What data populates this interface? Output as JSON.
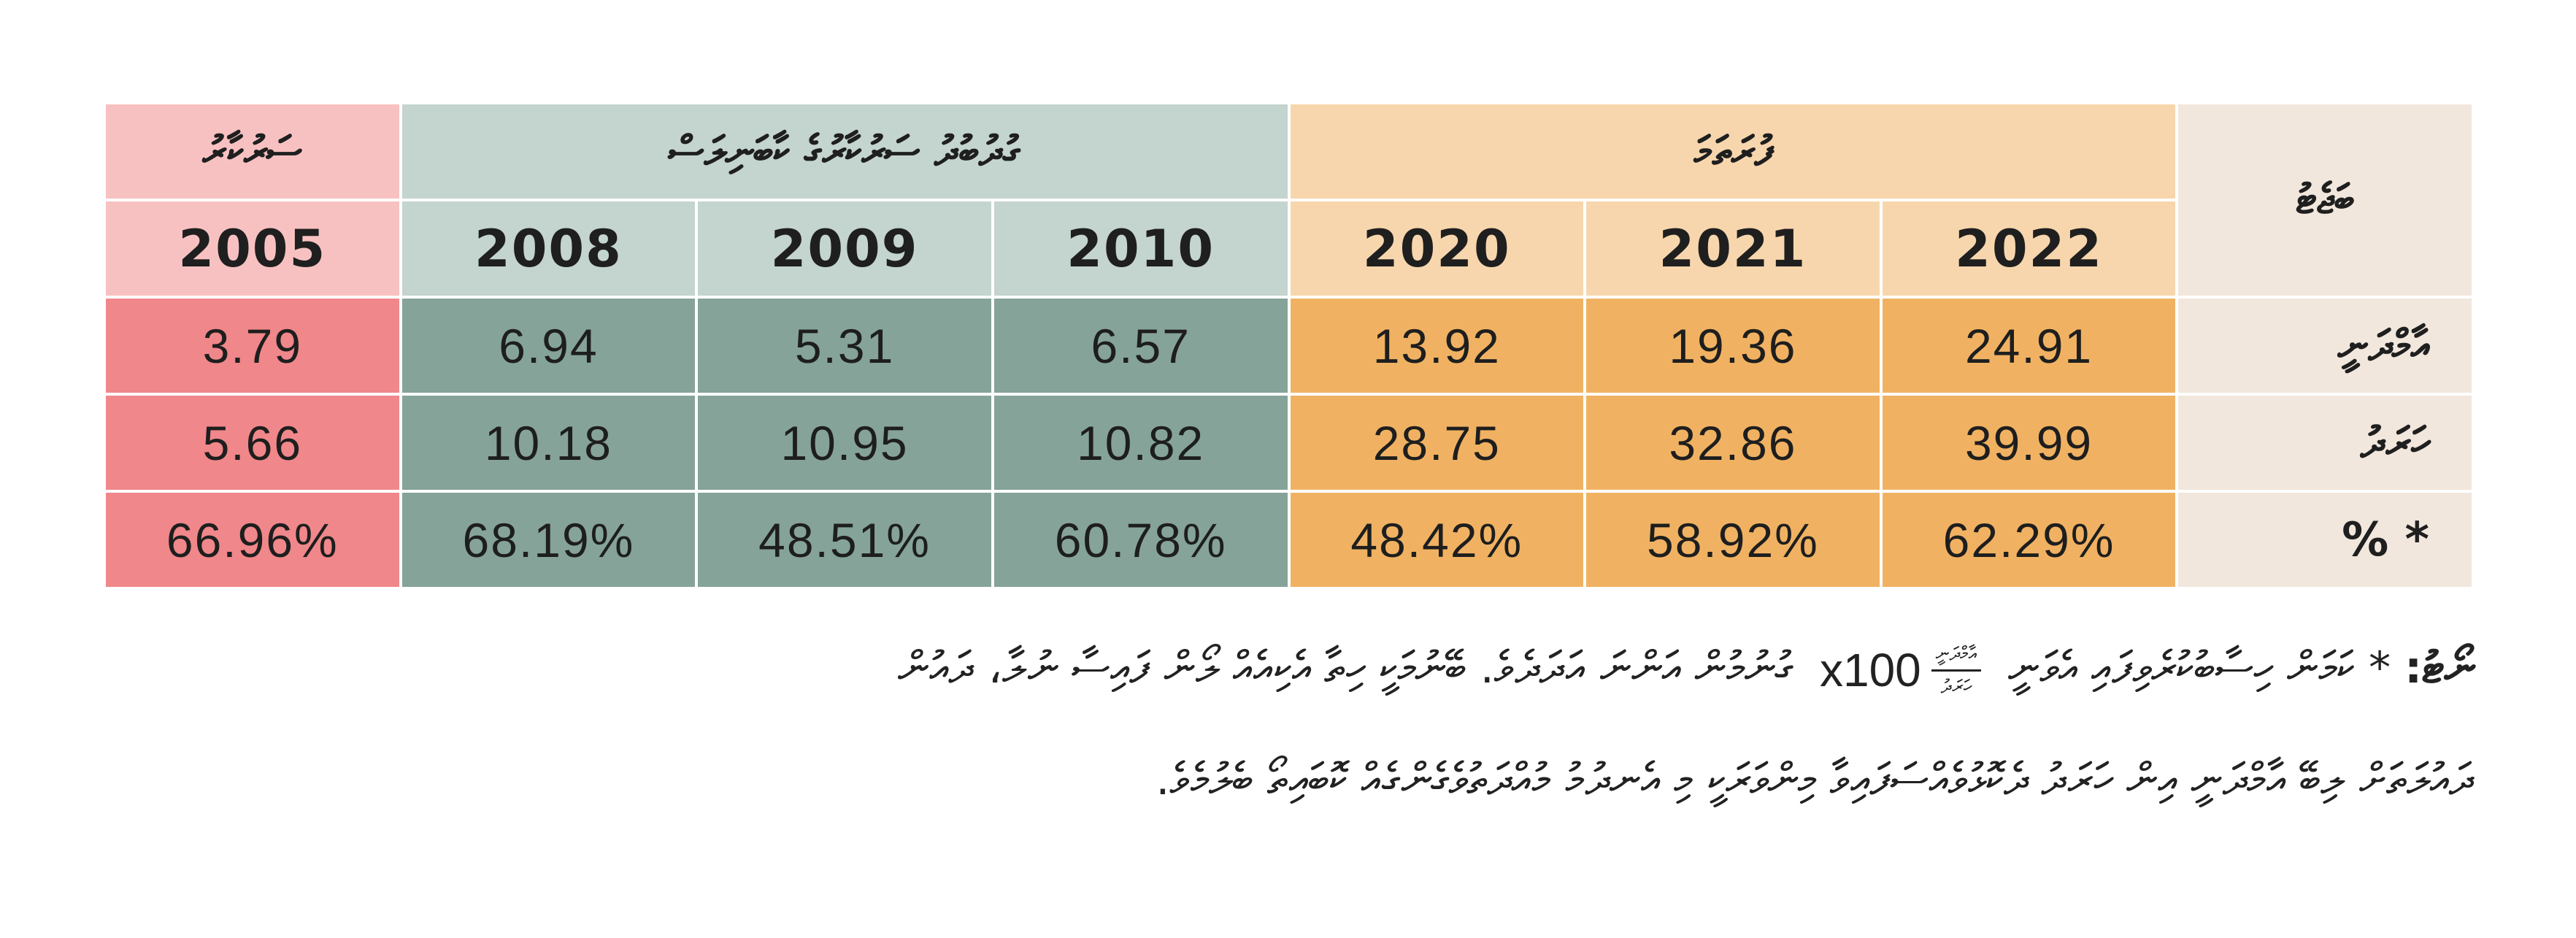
{
  "table": {
    "corner_label": "ބަޖެޓު",
    "groups": {
      "current": "ފުރަތަމަ",
      "previous": "ގުދުބުދު ސަރުކާރުގެ ކާބަނިލަސް",
      "old": "ސަރުކާރު"
    },
    "years": {
      "y2022": "2022",
      "y2021": "2021",
      "y2020": "2020",
      "y2010": "2010",
      "y2009": "2009",
      "y2008": "2008",
      "y2005": "2005"
    },
    "rows": {
      "expenditure": {
        "label": "އާމްދަނީ",
        "y2022": "24.91",
        "y2021": "19.36",
        "y2020": "13.92",
        "y2010": "6.57",
        "y2009": "5.31",
        "y2008": "6.94",
        "y2005": "3.79"
      },
      "revenue": {
        "label": "ހަރަދު",
        "y2022": "39.99",
        "y2021": "32.86",
        "y2020": "28.75",
        "y2010": "10.82",
        "y2009": "10.95",
        "y2008": "10.18",
        "y2005": "5.66"
      },
      "percent": {
        "label": "% *",
        "y2022": "62.29%",
        "y2021": "58.92%",
        "y2020": "48.42%",
        "y2010": "60.78%",
        "y2009": "48.51%",
        "y2008": "68.19%",
        "y2005": "66.96%"
      }
    }
  },
  "note": {
    "label": "ނޯޓު:",
    "line1_before_formula": "* ކަމަން ހިސާބުކުރެވިފައި އެވަނީ",
    "formula": {
      "coefficient": "x100",
      "numerator": "އާމްދަނީ",
      "denominator": "ހަރަދު"
    },
    "line1_after_formula": "ގުނުމުން އަންނަ އަދަދެވެ. ބޭނުމަކީ ހިތާ އެކިއެއް ލޯން ފައިސާ ނުލާ، ދައުން",
    "line2": "ދައުލަތަށް ލިބޭ އާމްދަނީ އިން ހަރަދު ދެކޮޅުވެއްސަފައިވާ މިންވަރަކީ މި އެނދުމު މުއްދަތުވެގެންގެއް ކޮބައިތޯ ބެލުމެވެ."
  }
}
